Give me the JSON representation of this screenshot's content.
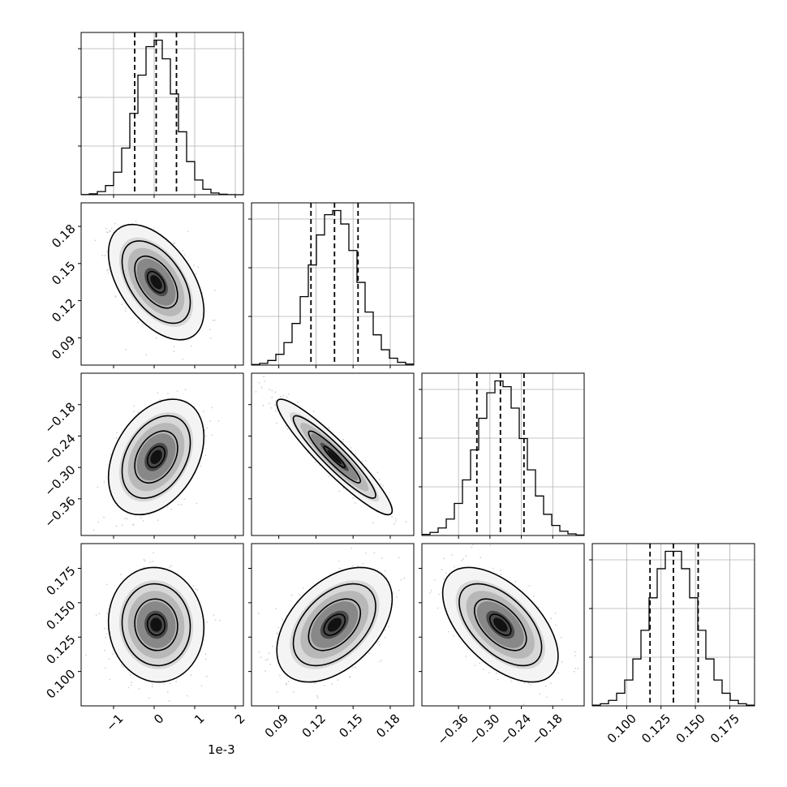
{
  "chart_data": {
    "type": "corner",
    "grid": true,
    "x_offset_text": "1e-3",
    "parameters": [
      {
        "mean": 5e-05,
        "std": 0.00048,
        "range": [
          -0.0018,
          0.0022
        ],
        "ticks": [
          -1,
          0,
          1,
          2
        ],
        "tick_labels": [
          "−1",
          "0",
          "1",
          "2"
        ],
        "quantiles": [
          -0.00048,
          5e-05,
          0.00055
        ]
      },
      {
        "mean": 0.135,
        "std": 0.019,
        "range": [
          0.068,
          0.199
        ],
        "ticks": [
          0.09,
          0.12,
          0.15,
          0.18
        ],
        "tick_labels": [
          "0.09",
          "0.12",
          "0.15",
          "0.18"
        ],
        "quantiles": [
          0.116,
          0.135,
          0.154
        ]
      },
      {
        "mean": -0.28,
        "std": 0.045,
        "range": [
          -0.43,
          -0.12
        ],
        "ticks": [
          -0.36,
          -0.3,
          -0.24,
          -0.18
        ],
        "tick_labels": [
          "−0.36",
          "−0.30",
          "−0.24",
          "−0.18"
        ],
        "quantiles": [
          -0.325,
          -0.28,
          -0.235
        ]
      },
      {
        "mean": 0.134,
        "std": 0.017,
        "range": [
          0.075,
          0.193
        ],
        "ticks": [
          0.1,
          0.125,
          0.15,
          0.175
        ],
        "tick_labels": [
          "0.100",
          "0.125",
          "0.150",
          "0.175"
        ],
        "quantiles": [
          0.117,
          0.134,
          0.152
        ]
      }
    ],
    "correlations": [
      [
        1.0,
        -0.5,
        0.35,
        -0.05
      ],
      [
        -0.5,
        1.0,
        -0.93,
        0.45
      ],
      [
        0.35,
        -0.93,
        1.0,
        -0.55
      ],
      [
        -0.05,
        0.45,
        -0.55,
        1.0
      ]
    ],
    "colors": {
      "lines": "#000000",
      "grid": "#b0b0b0",
      "points": "#9a9a9a"
    }
  }
}
